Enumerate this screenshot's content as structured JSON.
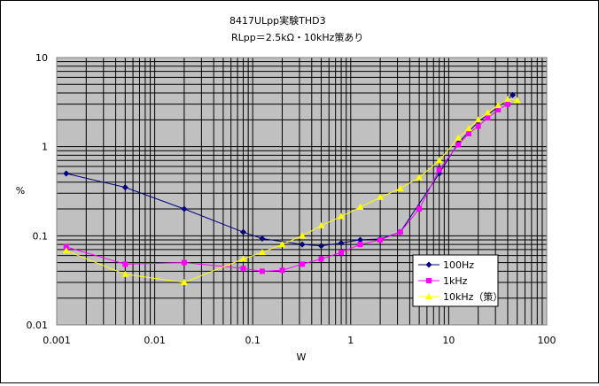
{
  "chart_data": {
    "type": "line",
    "title": "8417ULpp実験THD3",
    "subtitle": "RLpp＝2.5kΩ・10kHz策あり",
    "xlabel": "W",
    "ylabel": "%",
    "xscale": "log",
    "yscale": "log",
    "xlim": [
      0.001,
      100
    ],
    "ylim": [
      0.01,
      10
    ],
    "xticks": [
      "0.001",
      "0.01",
      "0.1",
      "1",
      "10",
      "100"
    ],
    "yticks": [
      "0.01",
      "0.1",
      "1",
      "10"
    ],
    "grid": true,
    "legend_position": "lower-right",
    "plot_background": "#c0c0c0",
    "series": [
      {
        "name": "100Hz",
        "color": "#000080",
        "marker": "diamond",
        "x": [
          0.00125,
          0.005,
          0.02,
          0.08,
          0.125,
          0.32,
          0.5,
          0.8,
          1.25,
          2,
          3.2,
          8,
          12.5,
          20,
          32,
          45
        ],
        "y": [
          0.5,
          0.35,
          0.2,
          0.11,
          0.093,
          0.08,
          0.077,
          0.083,
          0.09,
          0.092,
          0.11,
          0.5,
          1.1,
          1.9,
          2.8,
          3.8
        ]
      },
      {
        "name": "1kHz",
        "color": "#ff00ff",
        "marker": "square",
        "x": [
          0.00125,
          0.005,
          0.02,
          0.08,
          0.125,
          0.2,
          0.32,
          0.5,
          0.8,
          1.25,
          2,
          3.2,
          5,
          8,
          12.5,
          16,
          20,
          25,
          32,
          40
        ],
        "y": [
          0.075,
          0.048,
          0.05,
          0.043,
          0.04,
          0.041,
          0.048,
          0.055,
          0.065,
          0.08,
          0.09,
          0.11,
          0.2,
          0.55,
          1.05,
          1.4,
          1.7,
          2.1,
          2.6,
          3.0
        ]
      },
      {
        "name": "10kHz（策）",
        "color": "#ffff00",
        "marker": "triangle",
        "x": [
          0.00125,
          0.005,
          0.02,
          0.08,
          0.125,
          0.2,
          0.32,
          0.5,
          0.8,
          1.25,
          2,
          3.2,
          5,
          8,
          12.5,
          16,
          20,
          25,
          32,
          40,
          50
        ],
        "y": [
          0.068,
          0.037,
          0.03,
          0.055,
          0.065,
          0.08,
          0.1,
          0.13,
          0.165,
          0.21,
          0.27,
          0.34,
          0.45,
          0.7,
          1.25,
          1.6,
          2.0,
          2.4,
          2.9,
          3.4,
          3.3
        ]
      }
    ]
  }
}
